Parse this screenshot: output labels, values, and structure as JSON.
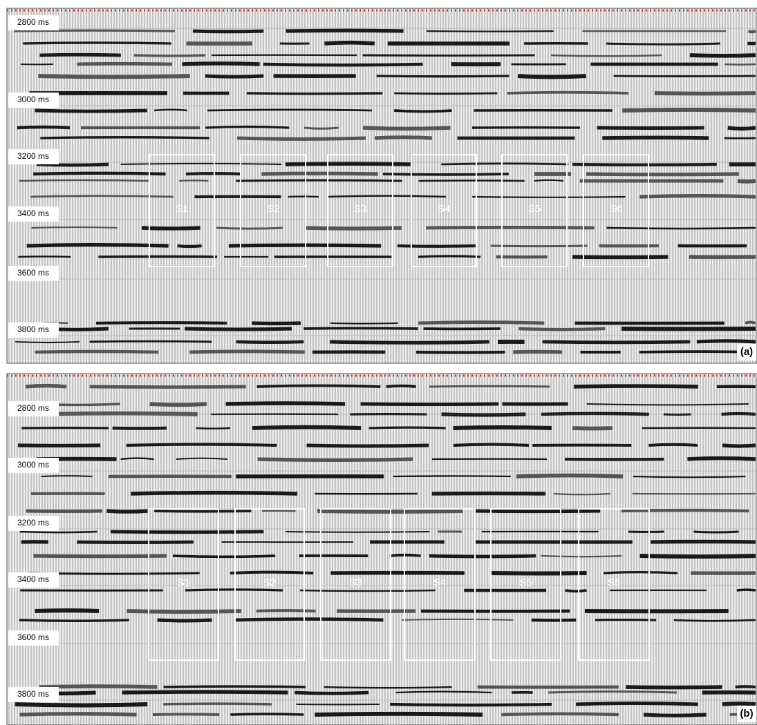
{
  "panels": [
    {
      "label": "(a)",
      "time_labels": [
        "2800 ms",
        "3000 ms",
        "3200 ms",
        "3400 ms",
        "3600 ms",
        "3800 ms"
      ],
      "boxes": [
        "S1",
        "S2",
        "S3",
        "S4",
        "S5",
        "S6"
      ]
    },
    {
      "label": "(b)",
      "time_labels": [
        "2800 ms",
        "3000 ms",
        "3200 ms",
        "3400 ms",
        "3600 ms",
        "3800 ms"
      ],
      "boxes": [
        "S1",
        "S2",
        "S3",
        "S4",
        "S5",
        "S6"
      ]
    }
  ]
}
